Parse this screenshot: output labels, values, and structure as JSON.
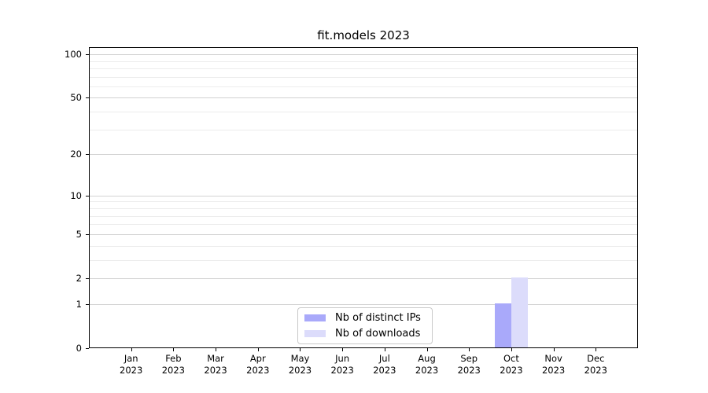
{
  "chart_data": {
    "type": "bar",
    "title": "fit.models 2023",
    "x_ticks": [
      {
        "month": "Jan",
        "year": "2023"
      },
      {
        "month": "Feb",
        "year": "2023"
      },
      {
        "month": "Mar",
        "year": "2023"
      },
      {
        "month": "Apr",
        "year": "2023"
      },
      {
        "month": "May",
        "year": "2023"
      },
      {
        "month": "Jun",
        "year": "2023"
      },
      {
        "month": "Jul",
        "year": "2023"
      },
      {
        "month": "Aug",
        "year": "2023"
      },
      {
        "month": "Sep",
        "year": "2023"
      },
      {
        "month": "Oct",
        "year": "2023"
      },
      {
        "month": "Nov",
        "year": "2023"
      },
      {
        "month": "Dec",
        "year": "2023"
      }
    ],
    "series": [
      {
        "name": "Nb of distinct IPs",
        "color": "#a9a9fa",
        "values": [
          0,
          0,
          0,
          0,
          0,
          0,
          0,
          0,
          0,
          1,
          0,
          0
        ]
      },
      {
        "name": "Nb of downloads",
        "color": "#dcdcfb",
        "values": [
          0,
          0,
          0,
          0,
          0,
          0,
          0,
          0,
          0,
          2,
          0,
          0
        ]
      }
    ],
    "yscale": "log1p",
    "ylim": [
      0,
      112
    ],
    "y_major_ticks": [
      0,
      1,
      2,
      5,
      10,
      20,
      50,
      100
    ],
    "y_major_tick_labels": [
      "0",
      "1",
      "2",
      "5",
      "10",
      "20",
      "50",
      "100"
    ],
    "y_minor_ticks": [
      3,
      4,
      6,
      7,
      8,
      9,
      30,
      40,
      60,
      70,
      80,
      90
    ],
    "grid": "horizontal",
    "legend_position": "lower center",
    "colors": {
      "major_grid": "#d2d2d2",
      "minor_grid": "#ececec",
      "axis": "#000000",
      "background": "#ffffff",
      "text": "#000000"
    }
  }
}
